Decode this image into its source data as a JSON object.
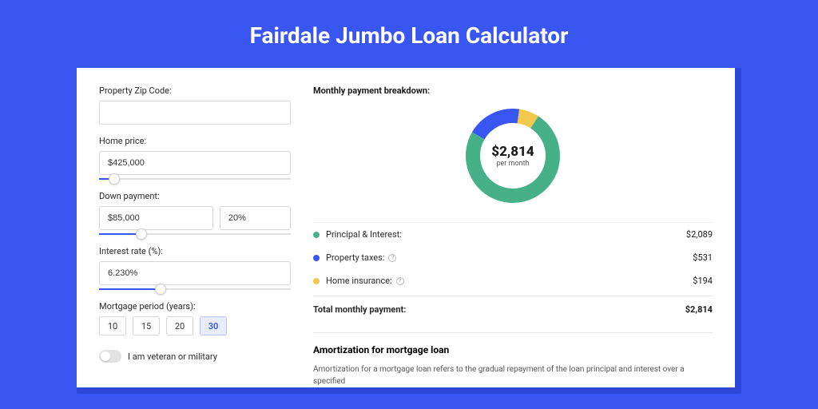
{
  "colors": {
    "page_bg": "#3a56f2",
    "shadow_bg": "#2e47d8",
    "card_bg": "#ffffff",
    "accent": "#3a56f2",
    "slider_rest": "#e0e0e0",
    "border": "#d6d6d6"
  },
  "title": "Fairdale Jumbo Loan Calculator",
  "form": {
    "zip": {
      "label": "Property Zip Code:",
      "value": ""
    },
    "home_price": {
      "label": "Home price:",
      "value": "$425,000",
      "percent": 8
    },
    "down_payment": {
      "label": "Down payment:",
      "value": "$85,000",
      "pct": "20%",
      "percent": 22
    },
    "interest_rate": {
      "label": "Interest rate (%):",
      "value": "6.230%",
      "percent": 32
    },
    "mortgage_period": {
      "label": "Mortgage period (years):",
      "options": [
        "10",
        "15",
        "20",
        "30"
      ],
      "selected": "30"
    },
    "veteran": {
      "label": "I am veteran or military",
      "checked": false
    }
  },
  "breakdown": {
    "title": "Monthly payment breakdown:",
    "center_amount": "$2,814",
    "center_sub": "per month",
    "items": [
      {
        "label": "Principal & Interest:",
        "amount": "$2,089",
        "color": "#46b089",
        "info": false,
        "value": 2089
      },
      {
        "label": "Property taxes:",
        "amount": "$531",
        "color": "#3a56f2",
        "info": true,
        "value": 531
      },
      {
        "label": "Home insurance:",
        "amount": "$194",
        "color": "#f2c94c",
        "info": true,
        "value": 194
      }
    ],
    "total_label": "Total monthly payment:",
    "total_amount": "$2,814",
    "donut": {
      "stroke_width": 18,
      "order_colors": [
        "#3a56f2",
        "#f2c94c",
        "#46b089"
      ],
      "order_values": [
        531,
        194,
        2089
      ]
    }
  },
  "amortization": {
    "title": "Amortization for mortgage loan",
    "body": "Amortization for a mortgage loan refers to the gradual repayment of the loan principal and interest over a specified"
  }
}
